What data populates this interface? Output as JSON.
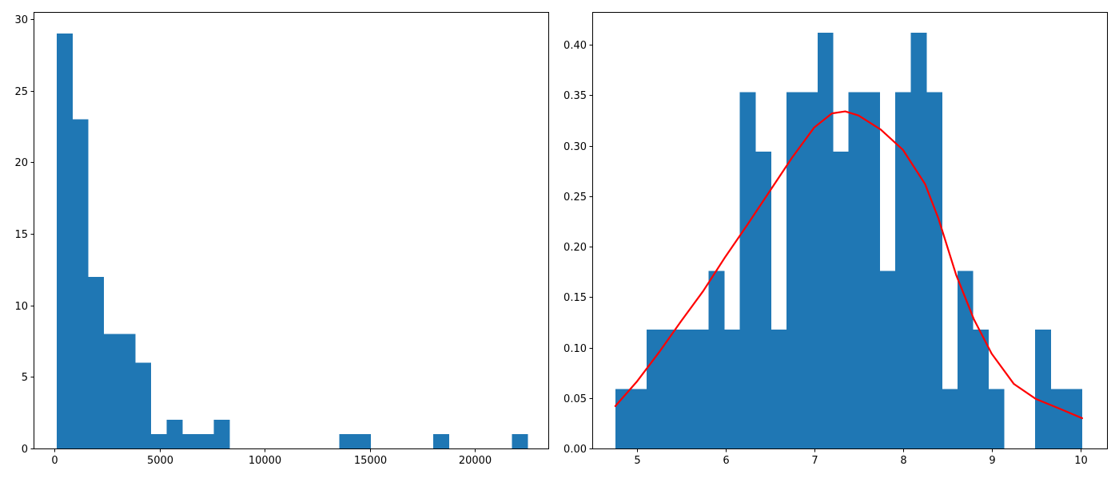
{
  "colors": {
    "bar": "#1f77b4",
    "curve": "#ff0000",
    "axis": "#000000",
    "background": "#ffffff"
  },
  "chart_data": [
    {
      "type": "bar",
      "kind": "histogram",
      "bin_start": 100,
      "bin_width": 747,
      "values": [
        29,
        23,
        12,
        8,
        8,
        6,
        1,
        2,
        1,
        1,
        2,
        0,
        0,
        0,
        0,
        0,
        0,
        0,
        1,
        1,
        0,
        0,
        0,
        0,
        1,
        0,
        0,
        0,
        0,
        1
      ],
      "xlim": [
        -1000,
        23500
      ],
      "ylim": [
        0,
        30.5
      ],
      "xticks": [
        {
          "value": 0,
          "label": "0"
        },
        {
          "value": 5000,
          "label": "5000"
        },
        {
          "value": 10000,
          "label": "10000"
        },
        {
          "value": 15000,
          "label": "15000"
        },
        {
          "value": 20000,
          "label": "20000"
        }
      ],
      "yticks": [
        {
          "value": 0,
          "label": "0"
        },
        {
          "value": 5,
          "label": "5"
        },
        {
          "value": 10,
          "label": "10"
        },
        {
          "value": 15,
          "label": "15"
        },
        {
          "value": 20,
          "label": "20"
        },
        {
          "value": 25,
          "label": "25"
        },
        {
          "value": 30,
          "label": "30"
        }
      ],
      "title": "",
      "xlabel": "",
      "ylabel": "",
      "grid": false
    },
    {
      "type": "bar",
      "kind": "histogram-with-density",
      "bin_start": 4.76,
      "bin_width": 0.1752,
      "values": [
        0.059,
        0.059,
        0.118,
        0.118,
        0.118,
        0.118,
        0.176,
        0.118,
        0.353,
        0.294,
        0.118,
        0.353,
        0.353,
        0.412,
        0.294,
        0.353,
        0.353,
        0.176,
        0.353,
        0.412,
        0.353,
        0.059,
        0.176,
        0.118,
        0.059,
        0,
        0,
        0.118,
        0.059,
        0.059
      ],
      "density_curve": {
        "x": [
          4.76,
          5.0,
          5.25,
          5.5,
          5.75,
          6.0,
          6.25,
          6.5,
          6.75,
          7.0,
          7.2,
          7.35,
          7.5,
          7.75,
          8.0,
          8.25,
          8.4,
          8.6,
          8.8,
          9.0,
          9.25,
          9.5,
          9.75,
          10.02
        ],
        "y": [
          0.042,
          0.066,
          0.095,
          0.126,
          0.156,
          0.19,
          0.222,
          0.255,
          0.288,
          0.318,
          0.332,
          0.334,
          0.33,
          0.316,
          0.296,
          0.262,
          0.228,
          0.172,
          0.128,
          0.094,
          0.064,
          0.049,
          0.04,
          0.03
        ]
      },
      "xlim": [
        4.5,
        10.3
      ],
      "ylim": [
        0,
        0.4325
      ],
      "xticks": [
        {
          "value": 5,
          "label": "5"
        },
        {
          "value": 6,
          "label": "6"
        },
        {
          "value": 7,
          "label": "7"
        },
        {
          "value": 8,
          "label": "8"
        },
        {
          "value": 9,
          "label": "9"
        },
        {
          "value": 10,
          "label": "10"
        }
      ],
      "yticks": [
        {
          "value": 0,
          "label": "0.00"
        },
        {
          "value": 0.05,
          "label": "0.05"
        },
        {
          "value": 0.1,
          "label": "0.10"
        },
        {
          "value": 0.15,
          "label": "0.15"
        },
        {
          "value": 0.2,
          "label": "0.20"
        },
        {
          "value": 0.25,
          "label": "0.25"
        },
        {
          "value": 0.3,
          "label": "0.30"
        },
        {
          "value": 0.35,
          "label": "0.35"
        },
        {
          "value": 0.4,
          "label": "0.40"
        }
      ],
      "title": "",
      "xlabel": "",
      "ylabel": "",
      "grid": false
    }
  ]
}
